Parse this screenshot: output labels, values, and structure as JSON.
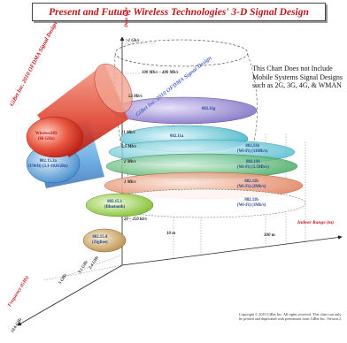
{
  "title": "Present and Future Wireless Technologies' 3-D Signal Design",
  "note": "This Chart Does not Include Mobile Systems Signal Designs such as 2G, 3G, 4G, & WMAN",
  "copyright": "Copyright © 2010 GiBet Inc. All rights reserved. This chart can only be printed and duplicated with permission from GiBet Inc. Version 2.",
  "axes": {
    "data_rate": "Data Rate",
    "indoor_range": "Indoor Range (m)",
    "frequency": "Frequency (GHz)"
  },
  "rates": [
    ">1 Gb/s",
    "100 Mb/s – 400 Mb/s",
    "54 Mb/s",
    "11 Mb/s",
    "5.5 Mb/s",
    "2 Mb/s",
    "1 Mb/s",
    "20 – 250 kb/s"
  ],
  "distances": [
    "10 m",
    "100 m"
  ],
  "frequencies": [
    "5 GHz",
    "3.1 GHz",
    "2.4 GHz",
    "10.6 GHz"
  ],
  "diagonal_labels": [
    "GiBet Inc. 2010 OFDMA Signal Design",
    "GiBet Inc. 2010 OFDMA Signal Design"
  ],
  "techs": {
    "t_80211g": "802.11g",
    "t_80211a": "802.11a",
    "t_80211b_a": "802.11b\n(Wi-Fi) (11Mb/s)",
    "t_80211b_b": "802.11b\n(Wi-Fi) (5.5Mb/s)",
    "t_80211b_c": "802.11b\n(Wi-Fi) (2Mb/s)",
    "t_80211b_d": "802.11b\n(Wi-Fi) (1Mb/s)",
    "t_wirelesshd": "WirelessHD\n(60 GHz)",
    "t_uwb": "802.15.3a\n(UWB) (3.1-10.6GHz)",
    "t_bluetooth": "802.15.1\n(Bluetooth)",
    "t_zigbee": "802.15.4\n(ZigBee)"
  },
  "colors": {
    "title_red": "#c0141a",
    "red_cylinder": "#e03c2a",
    "blue_cylinder": "#3d8fd6",
    "purple_disk": "#9b8fd0",
    "cyan_disk": "#62c8d8",
    "green_disk": "#4fb96a",
    "salmon_disk": "#ef9a7a",
    "lime_disk": "#9bd04a",
    "tan_disk": "#c9a56a"
  }
}
